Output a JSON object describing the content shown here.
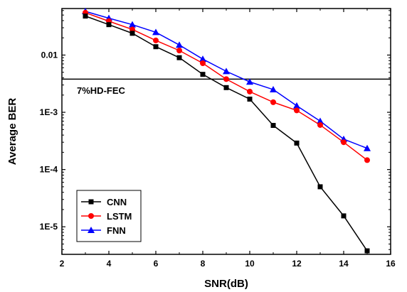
{
  "chart_data": {
    "type": "line",
    "xlabel": "SNR(dB)",
    "ylabel": "Average BER",
    "xlim": [
      2,
      16
    ],
    "ylim": [
      3.3e-06,
      0.065
    ],
    "y_scale": "log",
    "x_ticks": [
      2,
      4,
      6,
      8,
      10,
      12,
      14,
      16
    ],
    "y_ticks": [
      {
        "value": 1e-05,
        "label": "1E-5"
      },
      {
        "value": 0.0001,
        "label": "1E-4"
      },
      {
        "value": 0.001,
        "label": "1E-3"
      },
      {
        "value": 0.01,
        "label": "0.01"
      }
    ],
    "grid": false,
    "legend_position": "bottom-left",
    "threshold": {
      "value": 0.0038,
      "label": "7%HD-FEC"
    },
    "x": [
      3,
      4,
      5,
      6,
      7,
      8,
      9,
      10,
      11,
      12,
      13,
      14,
      15
    ],
    "series": [
      {
        "name": "CNN",
        "color": "#000000",
        "marker": "square",
        "values": [
          0.048,
          0.034,
          0.024,
          0.014,
          0.009,
          0.0046,
          0.0027,
          0.0017,
          0.00059,
          0.00029,
          5e-05,
          1.55e-05,
          3.8e-06
        ]
      },
      {
        "name": "LSTM",
        "color": "#ff0000",
        "marker": "circle",
        "values": [
          0.055,
          0.039,
          0.028,
          0.018,
          0.012,
          0.0072,
          0.0038,
          0.0023,
          0.0015,
          0.00108,
          0.0006,
          0.0003,
          0.000146
        ]
      },
      {
        "name": "FNN",
        "color": "#0000ff",
        "marker": "triangle",
        "values": [
          0.058,
          0.044,
          0.034,
          0.025,
          0.015,
          0.0085,
          0.0052,
          0.0034,
          0.0025,
          0.0013,
          0.0007,
          0.00034,
          0.000235
        ]
      }
    ]
  }
}
